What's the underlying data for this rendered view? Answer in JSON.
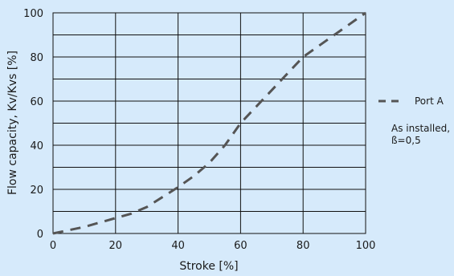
{
  "chart_data": {
    "type": "line",
    "title": "",
    "xlabel": "Stroke [%]",
    "ylabel": "Flow capacity, Kv/Kvs [%]",
    "xlim": [
      0,
      100
    ],
    "ylim": [
      0,
      100
    ],
    "x_ticks": [
      "0",
      "20",
      "40",
      "60",
      "80",
      "100"
    ],
    "y_ticks": [
      "0",
      "20",
      "40",
      "60",
      "80",
      "100"
    ],
    "grid": true,
    "legend_position": "right",
    "series": [
      {
        "name": "Port A",
        "color": "#555555",
        "style": "dashed",
        "x": [
          0,
          10,
          20,
          25,
          30,
          40,
          45,
          50,
          55,
          60,
          70,
          80,
          90,
          100
        ],
        "y": [
          0,
          3,
          7,
          9,
          12,
          21,
          26,
          32,
          40,
          50,
          65,
          80,
          90,
          100
        ]
      }
    ],
    "annotation": [
      "As installed,",
      "ß=0,5"
    ]
  }
}
